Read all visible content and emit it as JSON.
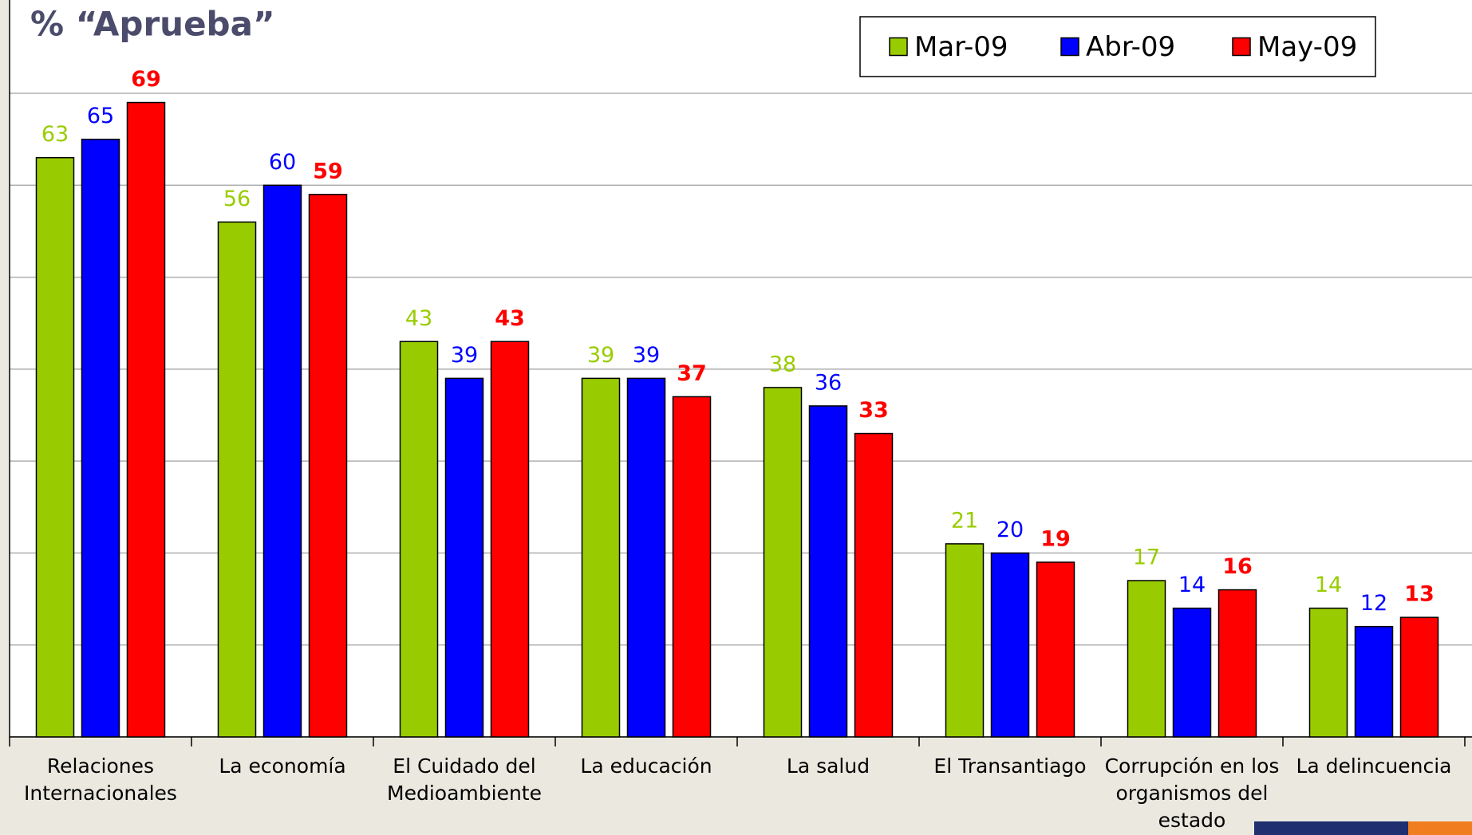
{
  "chart_data": {
    "type": "bar",
    "title": "% “Aprueba”",
    "categories": [
      "Relaciones Internacionales",
      "La economía",
      "El Cuidado del Medioambiente",
      "La educación",
      "La salud",
      "El Transantiago",
      "Corrupción en los organismos del estado",
      "La delincuencia"
    ],
    "series": [
      {
        "name": "Mar-09",
        "color": "#99cc00",
        "values": [
          63,
          56,
          43,
          39,
          38,
          21,
          17,
          14
        ]
      },
      {
        "name": "Abr-09",
        "color": "#0000ff",
        "values": [
          65,
          60,
          39,
          39,
          36,
          20,
          14,
          12
        ]
      },
      {
        "name": "May-09",
        "color": "#ff0000",
        "label_weight": "bold",
        "values": [
          69,
          59,
          43,
          37,
          33,
          19,
          16,
          13
        ]
      }
    ],
    "ylim": [
      0,
      70
    ],
    "yticks": [
      0,
      10,
      20,
      30,
      40,
      50,
      60,
      70
    ],
    "grid": true,
    "legend": "top-right"
  }
}
